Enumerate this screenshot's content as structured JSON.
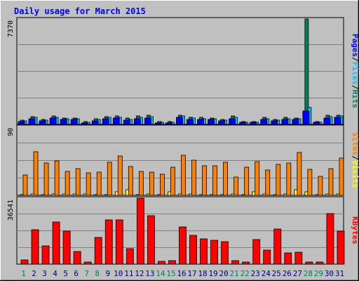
{
  "chart_data": {
    "type": "bar",
    "title": "Daily usage for March 2015",
    "categories": [
      "1",
      "2",
      "3",
      "4",
      "5",
      "6",
      "7",
      "8",
      "9",
      "10",
      "11",
      "12",
      "13",
      "14",
      "15",
      "16",
      "17",
      "18",
      "19",
      "20",
      "21",
      "22",
      "23",
      "24",
      "25",
      "26",
      "27",
      "28",
      "29",
      "30",
      "31"
    ],
    "weekend_days": [
      "1",
      "7",
      "8",
      "14",
      "15",
      "21",
      "22",
      "28",
      "29"
    ],
    "panels": [
      {
        "id": "top",
        "y_max_label": "7370",
        "ylim": [
          0,
          7370
        ],
        "axis_label_parts": [
          "Pages",
          "/",
          "Files",
          "/",
          "Hits"
        ],
        "series": [
          {
            "name": "Hits",
            "color": "#00805c",
            "values": [
              280,
              540,
              330,
              580,
              460,
              460,
              180,
              390,
              560,
              590,
              420,
              580,
              640,
              190,
              190,
              660,
              490,
              470,
              450,
              340,
              570,
              200,
              220,
              470,
              350,
              480,
              460,
              7370,
              200,
              630,
              660
            ]
          },
          {
            "name": "Files",
            "color": "#00c0ff",
            "values": [
              230,
              470,
              280,
              510,
              390,
              390,
              140,
              330,
              480,
              510,
              360,
              500,
              560,
              150,
              150,
              580,
              420,
              400,
              390,
              280,
              500,
              160,
              170,
              410,
              300,
              410,
              390,
              1160,
              160,
              550,
              580
            ]
          },
          {
            "name": "Pages",
            "color": "#0000ff",
            "values": [
              180,
              390,
              230,
              420,
              320,
              320,
              110,
              270,
              400,
              420,
              300,
              410,
              460,
              120,
              120,
              480,
              350,
              330,
              320,
              230,
              410,
              130,
              140,
              340,
              250,
              340,
              320,
              950,
              130,
              450,
              480
            ]
          }
        ]
      },
      {
        "id": "middle",
        "y_max_label": "90",
        "ylim": [
          0,
          90
        ],
        "axis_label_parts": [
          "Sites",
          "/",
          "Visits"
        ],
        "series": [
          {
            "name": "Visits",
            "color": "#ffff00",
            "values": [
              1,
              2,
              1,
              2,
              2,
              2,
              2,
              1,
              1,
              5,
              7,
              1,
              2,
              1,
              5,
              2,
              2,
              1,
              1,
              1,
              2,
              1,
              5,
              2,
              1,
              2,
              7,
              5,
              1,
              2,
              2
            ]
          },
          {
            "name": "Sites",
            "color": "#ff8000",
            "values": [
              27,
              57,
              42,
              45,
              31,
              35,
              29,
              30,
              43,
              51,
              38,
              31,
              30,
              28,
              37,
              52,
              46,
              39,
              39,
              43,
              24,
              37,
              44,
              33,
              40,
              42,
              56,
              34,
              25,
              35,
              49
            ]
          }
        ]
      },
      {
        "id": "bottom",
        "y_max_label": "36541",
        "ylim": [
          0,
          36541
        ],
        "axis_label_parts": [
          "KBytes"
        ],
        "series": [
          {
            "name": "KBytes",
            "color": "#ff0000",
            "values": [
              2300,
              19200,
              10000,
              23500,
              18100,
              7000,
              1000,
              14600,
              24600,
              24300,
              8600,
              36541,
              26700,
              1700,
              2000,
              20600,
              15800,
              14100,
              13200,
              12300,
              2000,
              1200,
              13500,
              7600,
              19400,
              6200,
              6800,
              1200,
              1300,
              27800,
              18100
            ]
          }
        ]
      }
    ],
    "colors": {
      "background": "#c0c0c0",
      "title": "#0000ff",
      "weekday_label": "#000080",
      "weekend_label": "#00805c",
      "gridline": "#808080",
      "bar_outline": "#000000"
    }
  }
}
